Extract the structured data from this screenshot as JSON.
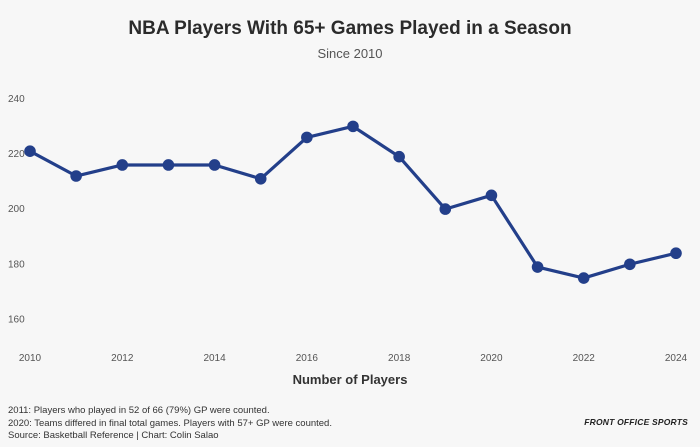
{
  "chart_data": {
    "type": "line",
    "title": "NBA Players With 65+ Games Played in a Season",
    "subtitle": "Since 2010",
    "xlabel": "Number of Players",
    "ylabel": "",
    "x": [
      2010,
      2011,
      2012,
      2013,
      2014,
      2015,
      2016,
      2017,
      2018,
      2019,
      2020,
      2021,
      2022,
      2023,
      2024
    ],
    "series": [
      {
        "values": [
          221,
          212,
          216,
          216,
          216,
          211,
          226,
          230,
          219,
          200,
          205,
          179,
          175,
          180,
          184
        ],
        "color": "#233f8a"
      }
    ],
    "x_ticks": [
      "2010",
      "2012",
      "2014",
      "2016",
      "2018",
      "2020",
      "2022",
      "2024"
    ],
    "y_ticks": [
      "160",
      "180",
      "200",
      "220",
      "240"
    ],
    "ylim": [
      150,
      245
    ],
    "xlim": [
      2010,
      2024
    ],
    "grid": false,
    "legend": "none"
  },
  "footnotes": [
    "2011: Players who played in 52 of 66 (79%) GP were counted.",
    "2020: Teams differed in final total games. Players with 57+ GP were counted.",
    "Source: Basketball Reference | Chart: Colin Salao"
  ],
  "brand": "FRONT OFFICE SPORTS"
}
